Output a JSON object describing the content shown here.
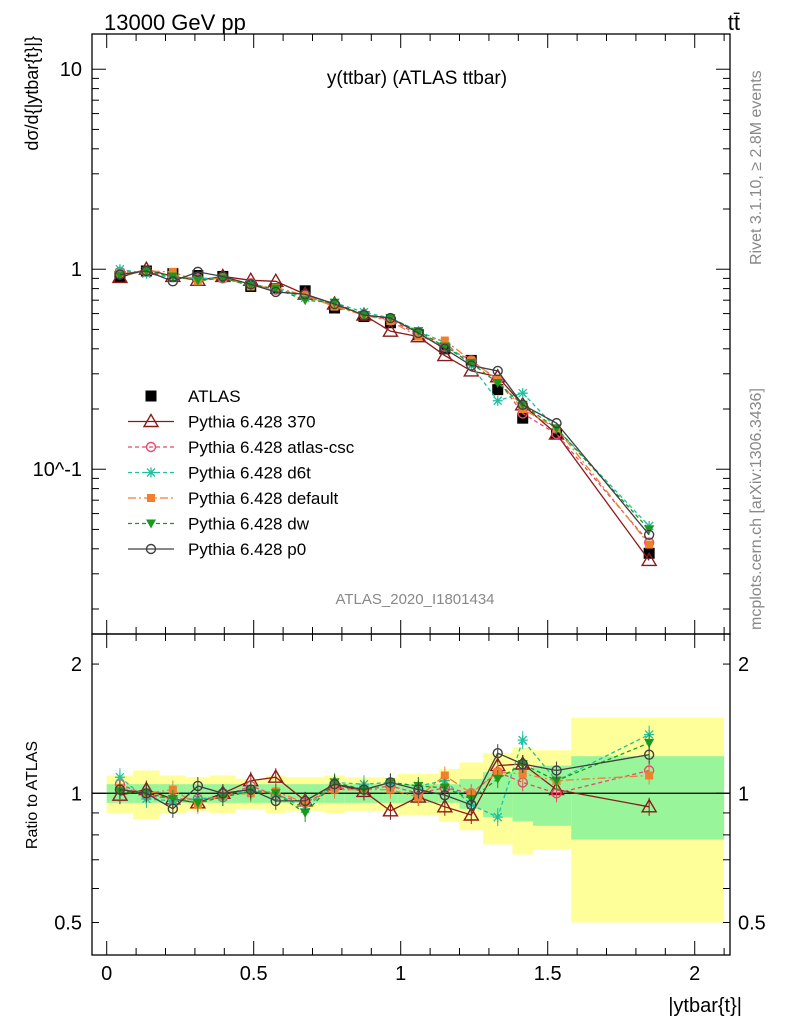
{
  "header": {
    "energy_label": "13000 GeV pp",
    "process_label": "tt̄"
  },
  "side_labels": {
    "rivet": "Rivet 3.1.10, ≥ 2.8M events",
    "mcplots": "mcplots.cern.ch [arXiv:1306.3436]"
  },
  "chart_data": [
    {
      "type": "scatter",
      "panel": "main",
      "title": "y(ttbar) (ATLAS ttbar)",
      "watermark": "ATLAS_2020_I1801434",
      "ylabel": "dσ/d{|ytbar{t}|}",
      "yscale": "log",
      "ylim": [
        0.015,
        15
      ],
      "xlim": [
        -0.05,
        2.12
      ],
      "ytick_labels": [
        "10",
        "1",
        "10^-1"
      ],
      "grid": false,
      "legend_position": "lower-left",
      "x": [
        0.045,
        0.135,
        0.225,
        0.31,
        0.395,
        0.49,
        0.575,
        0.675,
        0.775,
        0.875,
        0.965,
        1.06,
        1.15,
        1.24,
        1.33,
        1.415,
        1.53,
        1.845
      ],
      "series": [
        {
          "name": "ATLAS",
          "color": "#000000",
          "marker": "square",
          "values": [
            0.92,
            0.98,
            0.95,
            0.93,
            0.92,
            0.82,
            0.8,
            0.78,
            0.64,
            0.58,
            0.54,
            0.47,
            0.4,
            0.35,
            0.25,
            0.18,
            0.15,
            0.038
          ]
        },
        {
          "name": "Pythia 6.428 370",
          "color": "#8b1a1a",
          "marker": "triangle-open",
          "dash": "",
          "values": [
            0.91,
            1.0,
            0.92,
            0.88,
            0.92,
            0.88,
            0.87,
            0.75,
            0.67,
            0.59,
            0.49,
            0.46,
            0.37,
            0.31,
            0.29,
            0.21,
            0.15,
            0.035
          ]
        },
        {
          "name": "Pythia 6.428 atlas-csc",
          "color": "#e8486a",
          "marker": "circle-open",
          "dash": "4,3",
          "values": [
            0.97,
            0.97,
            0.92,
            0.9,
            0.9,
            0.85,
            0.79,
            0.74,
            0.66,
            0.59,
            0.56,
            0.47,
            0.41,
            0.35,
            0.28,
            0.19,
            0.15,
            0.043
          ]
        },
        {
          "name": "Pythia 6.428 d6t",
          "color": "#20c0a0",
          "marker": "star",
          "dash": "4,3",
          "values": [
            1.0,
            0.95,
            0.91,
            0.9,
            0.9,
            0.84,
            0.8,
            0.72,
            0.68,
            0.61,
            0.57,
            0.49,
            0.43,
            0.33,
            0.22,
            0.24,
            0.16,
            0.052
          ]
        },
        {
          "name": "Pythia 6.428 default",
          "color": "#f08030",
          "marker": "square-filled",
          "dash": "8,3,2,3",
          "values": [
            0.95,
            0.98,
            0.97,
            0.87,
            0.91,
            0.82,
            0.81,
            0.74,
            0.65,
            0.59,
            0.55,
            0.46,
            0.44,
            0.35,
            0.28,
            0.2,
            0.16,
            0.042
          ]
        },
        {
          "name": "Pythia 6.428 dw",
          "color": "#1a9a1a",
          "marker": "triangle-down",
          "dash": "4,3",
          "values": [
            0.93,
            0.98,
            0.92,
            0.88,
            0.9,
            0.83,
            0.8,
            0.7,
            0.68,
            0.59,
            0.57,
            0.49,
            0.41,
            0.34,
            0.27,
            0.21,
            0.16,
            0.05
          ]
        },
        {
          "name": "Pythia 6.428 p0",
          "color": "#404040",
          "marker": "circle-open",
          "dash": "",
          "values": [
            0.94,
            0.98,
            0.87,
            0.97,
            0.92,
            0.84,
            0.77,
            0.75,
            0.67,
            0.59,
            0.57,
            0.48,
            0.4,
            0.33,
            0.31,
            0.21,
            0.17,
            0.047
          ]
        }
      ]
    },
    {
      "type": "scatter",
      "panel": "ratio",
      "ylabel": "Ratio to ATLAS",
      "xlabel": "|ytbar{t}|",
      "yscale": "log",
      "ylim": [
        0.42,
        2.35
      ],
      "xlim": [
        -0.05,
        2.12
      ],
      "ytick_labels": [
        "0.5",
        "1",
        "2"
      ],
      "xtick_labels": [
        "0",
        "0.5",
        "1",
        "1.5",
        "2"
      ],
      "grid": false,
      "bin_edges": [
        0,
        0.09,
        0.18,
        0.27,
        0.35,
        0.44,
        0.54,
        0.61,
        0.74,
        0.81,
        0.94,
        0.99,
        1.13,
        1.2,
        1.28,
        1.38,
        1.45,
        1.58,
        2.1
      ],
      "band_stat": [
        0.05,
        0.05,
        0.05,
        0.05,
        0.05,
        0.05,
        0.05,
        0.05,
        0.05,
        0.05,
        0.05,
        0.05,
        0.05,
        0.08,
        0.12,
        0.14,
        0.16,
        0.22
      ],
      "band_total": [
        0.1,
        0.13,
        0.1,
        0.09,
        0.1,
        0.08,
        0.1,
        0.09,
        0.1,
        0.09,
        0.09,
        0.11,
        0.14,
        0.18,
        0.24,
        0.28,
        0.26,
        0.5
      ],
      "series": [
        {
          "name": "Pythia 6.428 370",
          "values": [
            0.99,
            1.02,
            0.97,
            0.95,
            1.0,
            1.07,
            1.09,
            0.96,
            1.05,
            1.01,
            0.91,
            0.98,
            0.93,
            0.89,
            1.16,
            1.17,
            1.02,
            0.93
          ]
        },
        {
          "name": "Pythia 6.428 atlas-csc",
          "values": [
            1.05,
            0.99,
            0.97,
            0.97,
            0.98,
            1.04,
            0.99,
            0.95,
            1.03,
            1.02,
            1.04,
            1.0,
            1.03,
            1.0,
            1.12,
            1.06,
            1.0,
            1.13
          ]
        },
        {
          "name": "Pythia 6.428 d6t",
          "values": [
            1.09,
            0.97,
            0.96,
            0.97,
            0.98,
            1.02,
            1.0,
            0.92,
            1.06,
            1.05,
            1.06,
            1.04,
            1.07,
            0.94,
            0.88,
            1.33,
            1.07,
            1.37
          ]
        },
        {
          "name": "Pythia 6.428 default",
          "values": [
            1.03,
            1.0,
            1.02,
            0.94,
            0.99,
            1.0,
            1.01,
            0.95,
            1.02,
            1.02,
            1.02,
            0.98,
            1.1,
            1.0,
            1.12,
            1.11,
            1.07,
            1.1
          ]
        },
        {
          "name": "Pythia 6.428 dw",
          "values": [
            1.01,
            1.0,
            0.97,
            0.95,
            0.98,
            1.01,
            1.0,
            0.9,
            1.06,
            1.02,
            1.06,
            1.04,
            1.03,
            0.97,
            1.08,
            1.17,
            1.07,
            1.31
          ]
        },
        {
          "name": "Pythia 6.428 p0",
          "values": [
            1.02,
            1.0,
            0.92,
            1.04,
            1.0,
            1.02,
            0.96,
            0.96,
            1.05,
            1.02,
            1.06,
            1.02,
            0.99,
            0.94,
            1.24,
            1.17,
            1.13,
            1.23
          ]
        }
      ]
    }
  ]
}
